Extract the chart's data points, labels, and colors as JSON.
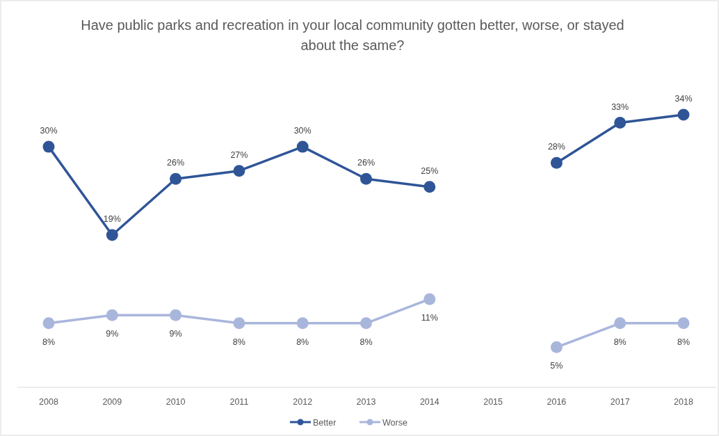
{
  "chart_data": {
    "type": "line",
    "title": "Have public parks and recreation in your local community gotten better, worse, or stayed about the same?",
    "categories": [
      "2008",
      "2009",
      "2010",
      "2011",
      "2012",
      "2013",
      "2014",
      "2015",
      "2016",
      "2017",
      "2018"
    ],
    "series": [
      {
        "name": "Better",
        "color": "#2f5597",
        "values": [
          30,
          19,
          26,
          27,
          30,
          26,
          25,
          null,
          28,
          33,
          34
        ],
        "value_labels": [
          "30%",
          "19%",
          "26%",
          "27%",
          "30%",
          "26%",
          "25%",
          null,
          "28%",
          "33%",
          "34%"
        ]
      },
      {
        "name": "Worse",
        "color": "#a9b6dc",
        "values": [
          8,
          9,
          9,
          8,
          8,
          8,
          11,
          null,
          5,
          8,
          8
        ],
        "value_labels": [
          "8%",
          "9%",
          "9%",
          "8%",
          "8%",
          "8%",
          "11%",
          null,
          "5%",
          "8%",
          "8%"
        ]
      }
    ],
    "marker": "circle",
    "legend": "bottom"
  }
}
